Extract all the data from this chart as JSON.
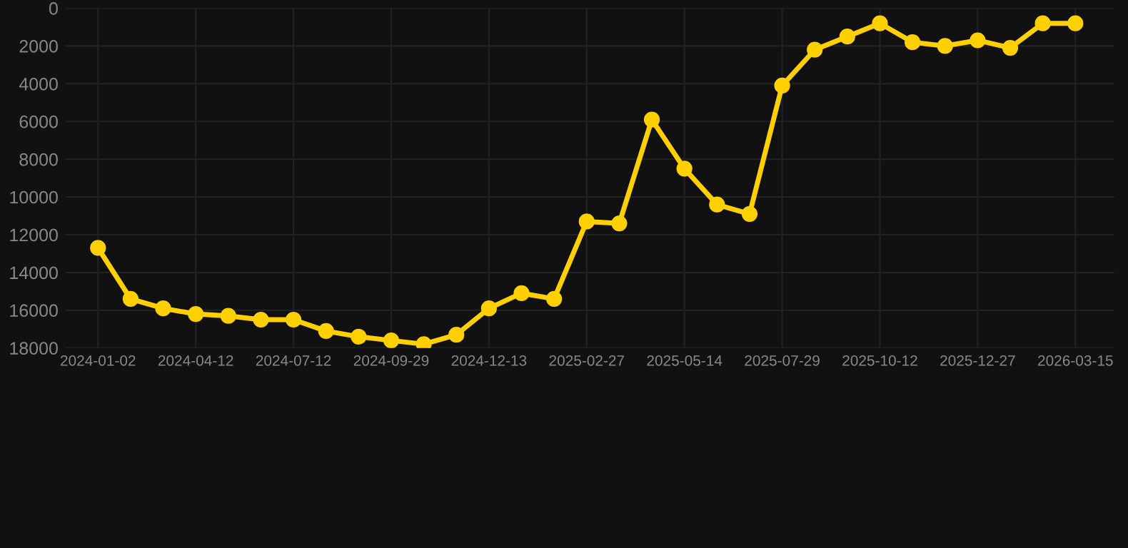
{
  "chart_data": {
    "type": "line",
    "categories": [
      "2024-01-02",
      null,
      null,
      "2024-04-12",
      null,
      null,
      "2024-07-12",
      null,
      null,
      "2024-09-29",
      null,
      null,
      "2024-12-13",
      null,
      null,
      "2025-02-27",
      null,
      null,
      "2025-05-14",
      null,
      null,
      "2025-07-29",
      null,
      null,
      "2025-10-12",
      null,
      null,
      "2025-12-27",
      null,
      null,
      "2026-03-15"
    ],
    "series": [
      {
        "color": "#ffd000",
        "values": [
          12700,
          15400,
          15900,
          16200,
          16300,
          16500,
          16500,
          17100,
          17400,
          17600,
          17800,
          17300,
          15900,
          15100,
          15400,
          11300,
          11400,
          5900,
          8500,
          10400,
          10900,
          4100,
          2200,
          1500,
          800,
          1800,
          2000,
          1700,
          2100,
          800,
          800
        ]
      }
    ],
    "ylim": [
      18000,
      0
    ],
    "yticks": [
      0,
      2000,
      4000,
      6000,
      8000,
      10000,
      12000,
      14000,
      16000,
      18000
    ],
    "grid": true,
    "marker": "circle",
    "line_style": "solid"
  }
}
